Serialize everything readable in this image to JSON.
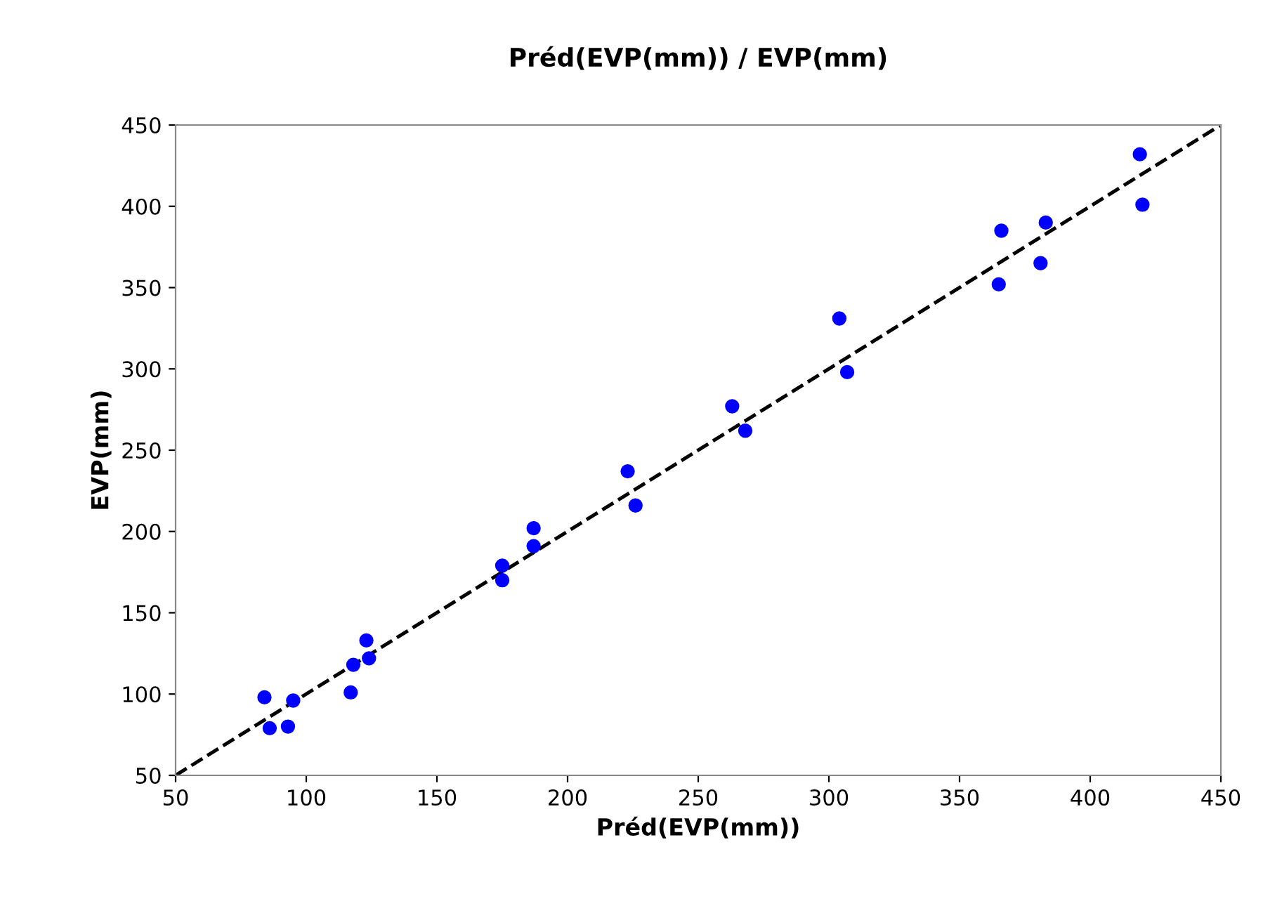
{
  "chart_data": {
    "type": "scatter",
    "title": "Préd(EVP(mm)) / EVP(mm)",
    "xlabel": "Préd(EVP(mm))",
    "ylabel": "EVP(mm)",
    "xlim": [
      50,
      450
    ],
    "ylim": [
      50,
      450
    ],
    "xticks": [
      50,
      100,
      150,
      200,
      250,
      300,
      350,
      400,
      450
    ],
    "yticks": [
      50,
      100,
      150,
      200,
      250,
      300,
      350,
      400,
      450
    ],
    "grid": false,
    "legend": false,
    "series": [
      {
        "type": "scatter",
        "color": "#0000ff",
        "marker": "circle",
        "x": [
          84,
          86,
          95,
          93,
          118,
          117,
          123,
          124,
          175,
          175,
          187,
          187,
          223,
          226,
          263,
          268,
          304,
          307,
          366,
          365,
          383,
          381,
          419,
          420
        ],
        "values": [
          98,
          79,
          96,
          80,
          118,
          101,
          133,
          122,
          179,
          170,
          202,
          191,
          237,
          216,
          277,
          262,
          331,
          298,
          385,
          352,
          390,
          365,
          432,
          401
        ]
      },
      {
        "type": "line",
        "color": "#000000",
        "line_style": "dashed",
        "marker": "none",
        "x": [
          50,
          450
        ],
        "values": [
          50,
          450
        ]
      }
    ]
  }
}
